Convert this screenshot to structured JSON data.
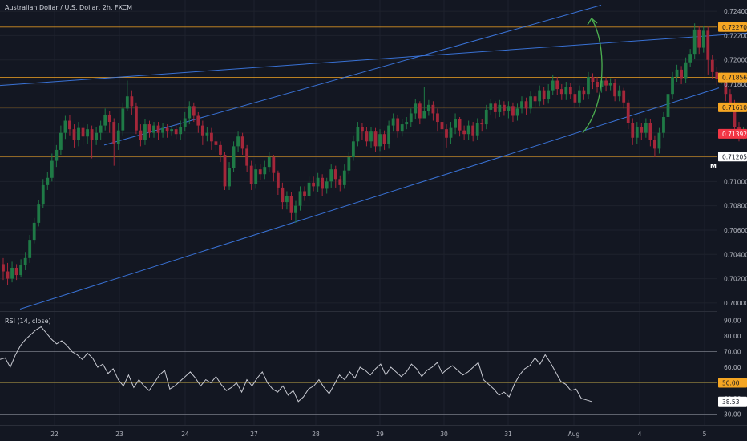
{
  "chart_data": {
    "type": "candlestick",
    "title": "Australian Dollar / U.S. Dollar, 2h, FXCM",
    "symbol": "Australian Dollar / U.S. Dollar",
    "interval": "2h",
    "source": "FXCM",
    "price_ticks": [
      "0.72400",
      "0.72200",
      "0.72000",
      "0.71800",
      "0.71600",
      "0.71400",
      "0.71200",
      "0.71000",
      "0.70800",
      "0.70600",
      "0.70400",
      "0.70200",
      "0.70000"
    ],
    "ylim": [
      0.6996,
      0.7246
    ],
    "x_labels": [
      "22",
      "23",
      "24",
      "27",
      "28",
      "29",
      "30",
      "31",
      "Aug",
      "4",
      "5"
    ],
    "horizontal_levels": [
      {
        "label": "0.72270",
        "value": 0.7227,
        "color": "#f5a623"
      },
      {
        "label": "0.71856",
        "value": 0.71856,
        "color": "#f5a623"
      },
      {
        "label": "0.71610",
        "value": 0.7161,
        "color": "#f5a623"
      },
      {
        "label": "0.71205",
        "value": 0.71205,
        "color": "#ffffff"
      }
    ],
    "last_price": {
      "label": "0.71392",
      "value": 0.71392,
      "color": "#f23645"
    },
    "marker_label": "M",
    "trendlines": [
      {
        "from": [
          0,
          0.7179
        ],
        "to": [
          932,
          0.7222
        ]
      },
      {
        "from": [
          130,
          0.713
        ],
        "to": [
          750,
          0.7245
        ]
      },
      {
        "from": [
          25,
          0.6995
        ],
        "to": [
          897,
          0.7177
        ]
      }
    ],
    "candles": [
      [
        0.7032,
        0.7026,
        0.7037,
        0.7019
      ],
      [
        0.7026,
        0.702,
        0.7033,
        0.7015
      ],
      [
        0.702,
        0.7029,
        0.7034,
        0.7017
      ],
      [
        0.7029,
        0.7023,
        0.7032,
        0.7019
      ],
      [
        0.7023,
        0.7031,
        0.7036,
        0.7021
      ],
      [
        0.7031,
        0.7037,
        0.7042,
        0.7027
      ],
      [
        0.7037,
        0.7052,
        0.7056,
        0.7033
      ],
      [
        0.7052,
        0.7066,
        0.707,
        0.7049
      ],
      [
        0.7066,
        0.7081,
        0.7085,
        0.7063
      ],
      [
        0.7081,
        0.7097,
        0.7102,
        0.7078
      ],
      [
        0.7097,
        0.7103,
        0.7108,
        0.7093
      ],
      [
        0.7103,
        0.7117,
        0.7123,
        0.71
      ],
      [
        0.7117,
        0.7126,
        0.713,
        0.7112
      ],
      [
        0.7126,
        0.714,
        0.7146,
        0.7122
      ],
      [
        0.714,
        0.715,
        0.7154,
        0.7135
      ],
      [
        0.715,
        0.7143,
        0.7155,
        0.7138
      ],
      [
        0.7143,
        0.7134,
        0.7147,
        0.7128
      ],
      [
        0.7134,
        0.7144,
        0.7149,
        0.7129
      ],
      [
        0.7144,
        0.7137,
        0.7148,
        0.713
      ],
      [
        0.7137,
        0.7143,
        0.7147,
        0.7131
      ],
      [
        0.7143,
        0.7134,
        0.7146,
        0.7119
      ],
      [
        0.7134,
        0.714,
        0.7145,
        0.713
      ],
      [
        0.714,
        0.7146,
        0.715,
        0.7134
      ],
      [
        0.7146,
        0.7155,
        0.716,
        0.7142
      ],
      [
        0.7155,
        0.7149,
        0.7158,
        0.714
      ],
      [
        0.7149,
        0.7131,
        0.7152,
        0.7113
      ],
      [
        0.7131,
        0.7142,
        0.7148,
        0.7126
      ],
      [
        0.7142,
        0.716,
        0.7165,
        0.7138
      ],
      [
        0.716,
        0.717,
        0.7183,
        0.7158
      ],
      [
        0.717,
        0.7162,
        0.7175,
        0.7155
      ],
      [
        0.7162,
        0.7142,
        0.7165,
        0.7139
      ],
      [
        0.7142,
        0.7134,
        0.7147,
        0.7129
      ],
      [
        0.7134,
        0.7147,
        0.7151,
        0.713
      ],
      [
        0.7147,
        0.714,
        0.715,
        0.7136
      ],
      [
        0.714,
        0.7146,
        0.7149,
        0.7136
      ],
      [
        0.7146,
        0.714,
        0.7149,
        0.7134
      ],
      [
        0.714,
        0.7144,
        0.7148,
        0.7136
      ],
      [
        0.7144,
        0.7141,
        0.7147,
        0.7136
      ],
      [
        0.7141,
        0.7143,
        0.7146,
        0.7138
      ],
      [
        0.7143,
        0.7139,
        0.7147,
        0.7135
      ],
      [
        0.7139,
        0.7145,
        0.715,
        0.7134
      ],
      [
        0.7145,
        0.7152,
        0.7157,
        0.7141
      ],
      [
        0.7152,
        0.7162,
        0.7166,
        0.7147
      ],
      [
        0.7162,
        0.7154,
        0.7165,
        0.7149
      ],
      [
        0.7154,
        0.7146,
        0.7157,
        0.714
      ],
      [
        0.7146,
        0.7138,
        0.715,
        0.713
      ],
      [
        0.7138,
        0.714,
        0.7145,
        0.7133
      ],
      [
        0.714,
        0.7133,
        0.7144,
        0.7126
      ],
      [
        0.7133,
        0.713,
        0.7137,
        0.7124
      ],
      [
        0.713,
        0.7122,
        0.7133,
        0.7116
      ],
      [
        0.7122,
        0.7096,
        0.7124,
        0.7093
      ],
      [
        0.7096,
        0.7111,
        0.7116,
        0.7093
      ],
      [
        0.7111,
        0.7129,
        0.7133,
        0.7108
      ],
      [
        0.7129,
        0.7137,
        0.7141,
        0.7124
      ],
      [
        0.7137,
        0.7127,
        0.714,
        0.7122
      ],
      [
        0.7127,
        0.7113,
        0.713,
        0.7108
      ],
      [
        0.7113,
        0.7098,
        0.7117,
        0.7093
      ],
      [
        0.7098,
        0.711,
        0.7114,
        0.7094
      ],
      [
        0.711,
        0.7106,
        0.7114,
        0.7101
      ],
      [
        0.7106,
        0.7112,
        0.7117,
        0.7102
      ],
      [
        0.7112,
        0.712,
        0.7124,
        0.7108
      ],
      [
        0.712,
        0.7107,
        0.7122,
        0.71
      ],
      [
        0.7107,
        0.7095,
        0.7109,
        0.7089
      ],
      [
        0.7095,
        0.7083,
        0.7099,
        0.7077
      ],
      [
        0.7083,
        0.7088,
        0.7092,
        0.7077
      ],
      [
        0.7088,
        0.7074,
        0.7091,
        0.7068
      ],
      [
        0.7074,
        0.708,
        0.7084,
        0.7066
      ],
      [
        0.708,
        0.7092,
        0.7096,
        0.7076
      ],
      [
        0.7092,
        0.7088,
        0.7096,
        0.7084
      ],
      [
        0.7088,
        0.7099,
        0.7104,
        0.7084
      ],
      [
        0.7099,
        0.7096,
        0.7104,
        0.7092
      ],
      [
        0.7096,
        0.7103,
        0.7107,
        0.7091
      ],
      [
        0.7103,
        0.7094,
        0.7106,
        0.7088
      ],
      [
        0.7094,
        0.71,
        0.7103,
        0.709
      ],
      [
        0.71,
        0.711,
        0.7114,
        0.7095
      ],
      [
        0.711,
        0.7102,
        0.7113,
        0.7095
      ],
      [
        0.7102,
        0.7097,
        0.7105,
        0.7092
      ],
      [
        0.7097,
        0.7109,
        0.7114,
        0.7094
      ],
      [
        0.7109,
        0.712,
        0.7124,
        0.7106
      ],
      [
        0.712,
        0.7133,
        0.7138,
        0.7117
      ],
      [
        0.7133,
        0.7145,
        0.7149,
        0.7129
      ],
      [
        0.7145,
        0.7141,
        0.7148,
        0.7134
      ],
      [
        0.7141,
        0.7133,
        0.7145,
        0.7129
      ],
      [
        0.7133,
        0.7141,
        0.7145,
        0.7128
      ],
      [
        0.7141,
        0.7129,
        0.7144,
        0.7124
      ],
      [
        0.7129,
        0.7139,
        0.7143,
        0.7125
      ],
      [
        0.7139,
        0.7131,
        0.7142,
        0.7126
      ],
      [
        0.7131,
        0.7146,
        0.715,
        0.7127
      ],
      [
        0.7146,
        0.7152,
        0.7156,
        0.7141
      ],
      [
        0.7152,
        0.7141,
        0.7155,
        0.7136
      ],
      [
        0.7141,
        0.7147,
        0.7151,
        0.7137
      ],
      [
        0.7147,
        0.7149,
        0.7153,
        0.7143
      ],
      [
        0.7149,
        0.7156,
        0.716,
        0.7145
      ],
      [
        0.7156,
        0.7164,
        0.7168,
        0.7151
      ],
      [
        0.7164,
        0.7152,
        0.7166,
        0.7147
      ],
      [
        0.7152,
        0.7158,
        0.7178,
        0.7155
      ],
      [
        0.7158,
        0.7163,
        0.7167,
        0.7154
      ],
      [
        0.7163,
        0.7156,
        0.7166,
        0.715
      ],
      [
        0.7156,
        0.7149,
        0.716,
        0.7141
      ],
      [
        0.7149,
        0.7143,
        0.7152,
        0.7137
      ],
      [
        0.7143,
        0.7136,
        0.7147,
        0.7128
      ],
      [
        0.7136,
        0.7144,
        0.7149,
        0.7131
      ],
      [
        0.7144,
        0.7151,
        0.7156,
        0.7139
      ],
      [
        0.7151,
        0.7142,
        0.7153,
        0.7137
      ],
      [
        0.7142,
        0.7139,
        0.7146,
        0.7134
      ],
      [
        0.7139,
        0.7146,
        0.715,
        0.7134
      ],
      [
        0.7146,
        0.7138,
        0.7149,
        0.7133
      ],
      [
        0.7138,
        0.7148,
        0.7152,
        0.7134
      ],
      [
        0.7148,
        0.7147,
        0.7151,
        0.7141
      ],
      [
        0.7147,
        0.7159,
        0.7163,
        0.7143
      ],
      [
        0.7159,
        0.7164,
        0.7168,
        0.7155
      ],
      [
        0.7164,
        0.7157,
        0.7166,
        0.7152
      ],
      [
        0.7157,
        0.7163,
        0.7167,
        0.7153
      ],
      [
        0.7163,
        0.7158,
        0.7166,
        0.7154
      ],
      [
        0.7158,
        0.7162,
        0.7166,
        0.7152
      ],
      [
        0.7162,
        0.7154,
        0.7165,
        0.7149
      ],
      [
        0.7154,
        0.716,
        0.7164,
        0.715
      ],
      [
        0.716,
        0.7166,
        0.717,
        0.7156
      ],
      [
        0.7166,
        0.716,
        0.7169,
        0.7155
      ],
      [
        0.716,
        0.717,
        0.7174,
        0.7156
      ],
      [
        0.717,
        0.7166,
        0.7173,
        0.7161
      ],
      [
        0.7166,
        0.7175,
        0.7179,
        0.7162
      ],
      [
        0.7175,
        0.7168,
        0.7178,
        0.7163
      ],
      [
        0.7168,
        0.7175,
        0.718,
        0.7164
      ],
      [
        0.7175,
        0.7183,
        0.7188,
        0.7171
      ],
      [
        0.7183,
        0.7176,
        0.7186,
        0.7171
      ],
      [
        0.7176,
        0.7172,
        0.718,
        0.7167
      ],
      [
        0.7172,
        0.7178,
        0.7182,
        0.7167
      ],
      [
        0.7178,
        0.7172,
        0.7181,
        0.7168
      ],
      [
        0.7172,
        0.7165,
        0.7175,
        0.716
      ],
      [
        0.7165,
        0.7175,
        0.7179,
        0.7161
      ],
      [
        0.7175,
        0.7172,
        0.7178,
        0.7167
      ],
      [
        0.7172,
        0.7186,
        0.719,
        0.7168
      ],
      [
        0.7186,
        0.7182,
        0.7189,
        0.7176
      ],
      [
        0.7182,
        0.7178,
        0.7186,
        0.7173
      ],
      [
        0.7178,
        0.7183,
        0.7187,
        0.7173
      ],
      [
        0.7183,
        0.7179,
        0.7186,
        0.7174
      ],
      [
        0.7179,
        0.7181,
        0.7185,
        0.7175
      ],
      [
        0.7181,
        0.717,
        0.7184,
        0.7166
      ],
      [
        0.717,
        0.7175,
        0.7179,
        0.7166
      ],
      [
        0.7175,
        0.7165,
        0.7177,
        0.716
      ],
      [
        0.7165,
        0.7148,
        0.7167,
        0.7143
      ],
      [
        0.7148,
        0.7136,
        0.7152,
        0.713
      ],
      [
        0.7136,
        0.7145,
        0.7149,
        0.7131
      ],
      [
        0.7145,
        0.714,
        0.7148,
        0.7134
      ],
      [
        0.714,
        0.7148,
        0.7152,
        0.7136
      ],
      [
        0.7148,
        0.7134,
        0.7151,
        0.7129
      ],
      [
        0.7134,
        0.7127,
        0.7138,
        0.712
      ],
      [
        0.7127,
        0.714,
        0.7144,
        0.7123
      ],
      [
        0.714,
        0.7153,
        0.7157,
        0.7136
      ],
      [
        0.7153,
        0.7172,
        0.7176,
        0.7149
      ],
      [
        0.7172,
        0.7186,
        0.719,
        0.7168
      ],
      [
        0.7186,
        0.7192,
        0.7196,
        0.7182
      ],
      [
        0.7192,
        0.7185,
        0.7195,
        0.718
      ],
      [
        0.7185,
        0.7198,
        0.7202,
        0.7181
      ],
      [
        0.7198,
        0.7205,
        0.7209,
        0.7194
      ],
      [
        0.7205,
        0.7225,
        0.723,
        0.7201
      ],
      [
        0.7225,
        0.721,
        0.7228,
        0.7205
      ],
      [
        0.721,
        0.7224,
        0.7228,
        0.7206
      ],
      [
        0.7224,
        0.72,
        0.7227,
        0.7188
      ],
      [
        0.72,
        0.719,
        0.7204,
        0.7184
      ],
      [
        0.719,
        0.7184,
        0.7194,
        0.7179
      ],
      [
        0.7184,
        0.7186,
        0.719,
        0.718
      ],
      [
        0.7186,
        0.7172,
        0.7189,
        0.7166
      ],
      [
        0.7172,
        0.7164,
        0.7176,
        0.716
      ],
      [
        0.7164,
        0.7145,
        0.7167,
        0.7141
      ],
      [
        0.7145,
        0.7136,
        0.7149,
        0.7133
      ],
      [
        0.7136,
        0.7141,
        0.7145,
        0.7135
      ],
      [
        0.7141,
        0.7139,
        0.7143,
        0.7136
      ]
    ],
    "rsi": {
      "label": "RSI (14, close)",
      "ticks": [
        "90.00",
        "80.00",
        "70.00",
        "60.00",
        "50.00",
        "40.00",
        "30.00"
      ],
      "ylim": [
        24,
        95
      ],
      "bands": [
        70,
        50,
        30
      ],
      "badge_label": "50.00",
      "last_label": "38.53",
      "values": [
        65,
        66,
        60,
        68,
        74,
        78,
        81,
        84,
        86,
        82,
        78,
        75,
        77,
        74,
        70,
        68,
        65,
        69,
        66,
        60,
        62,
        56,
        59,
        52,
        48,
        55,
        47,
        52,
        48,
        45,
        50,
        55,
        58,
        46,
        48,
        51,
        54,
        57,
        53,
        48,
        52,
        50,
        54,
        49,
        45,
        47,
        50,
        44,
        52,
        48,
        53,
        57,
        50,
        46,
        44,
        48,
        42,
        45,
        38,
        41,
        46,
        48,
        52,
        47,
        43,
        49,
        55,
        52,
        57,
        53,
        60,
        58,
        55,
        59,
        62,
        55,
        60,
        57,
        54,
        57,
        62,
        59,
        54,
        58,
        60,
        63,
        56,
        59,
        61,
        58,
        55,
        57,
        60,
        63,
        52,
        49,
        46,
        42,
        44,
        41,
        49,
        55,
        59,
        61,
        66,
        62,
        68,
        63,
        57,
        51,
        49,
        45,
        46,
        40,
        39,
        38
      ]
    }
  }
}
